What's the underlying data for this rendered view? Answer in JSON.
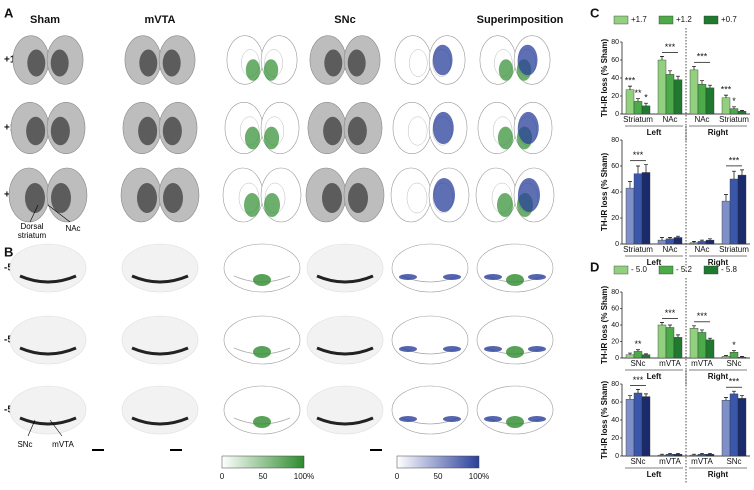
{
  "panels": [
    "A",
    "B",
    "C",
    "D"
  ],
  "columns": [
    "Sham",
    "mVTA",
    "SNc",
    "Superimposition"
  ],
  "rows_a": [
    "+1.7",
    "+1.2",
    "+0.7"
  ],
  "rows_b": [
    "-5.0",
    "-5.2",
    "-5.8"
  ],
  "labels_a": [
    "Dorsal striatum",
    "NAc"
  ],
  "labels_b": [
    "SNc",
    "mVTA"
  ],
  "colorbars": [
    {
      "ticks": [
        0,
        50,
        {
          "value": 100,
          "label": "100%"
        }
      ],
      "color": "#2e8b2e"
    },
    {
      "ticks": [
        0,
        50,
        {
          "value": 100,
          "label": "100%"
        }
      ],
      "color": "#2a3f9a"
    }
  ],
  "chart_data": [
    {
      "type": "bar",
      "ylabel": "TH-IR loss (% Sham)",
      "categories": [
        "Striatum",
        "NAc",
        "NAc",
        "Striatum"
      ],
      "groups": [
        "Left",
        "Right"
      ],
      "ylim": [
        0,
        80
      ],
      "yticks": [
        0,
        20,
        40,
        60,
        80
      ],
      "series": [
        {
          "name": "+1.7",
          "color": "#92d07f",
          "values": [
            27,
            60,
            49,
            18
          ],
          "errors": [
            4,
            4,
            4,
            3
          ]
        },
        {
          "name": "+1.2",
          "color": "#4caa48",
          "values": [
            14,
            44,
            33,
            6
          ],
          "errors": [
            3,
            4,
            4,
            2
          ]
        },
        {
          "name": "+0.7",
          "color": "#1f7a30",
          "values": [
            9,
            38,
            29,
            3
          ],
          "errors": [
            3,
            4,
            3,
            1
          ]
        }
      ],
      "annotations": [
        "***",
        "**",
        "*",
        "***",
        "***",
        "***",
        "*"
      ]
    },
    {
      "type": "bar",
      "ylabel": "TH-IR loss (% Sham)",
      "categories": [
        "Striatum",
        "NAc",
        "NAc",
        "Striatum"
      ],
      "groups": [
        "Left",
        "Right"
      ],
      "ylim": [
        0,
        80
      ],
      "yticks": [
        0,
        20,
        40,
        60,
        80
      ],
      "series": [
        {
          "color": "#7f90c8",
          "values": [
            43,
            3,
            1,
            33
          ],
          "errors": [
            5,
            2,
            1,
            5
          ]
        },
        {
          "color": "#3b57aa",
          "values": [
            54,
            4,
            2,
            50
          ],
          "errors": [
            6,
            1,
            1,
            6
          ]
        },
        {
          "color": "#1a2a6c",
          "values": [
            55,
            5,
            3,
            53
          ],
          "errors": [
            6,
            1,
            1,
            4
          ]
        }
      ],
      "annotations": [
        "***",
        "***"
      ]
    },
    {
      "type": "bar",
      "ylabel": "TH-IR loss (% Sham)",
      "categories": [
        "SNc",
        "mVTA",
        "mVTA",
        "SNc"
      ],
      "groups": [
        "Left",
        "Right"
      ],
      "ylim": [
        0,
        80
      ],
      "yticks": [
        0,
        20,
        40,
        60,
        80
      ],
      "series": [
        {
          "name": "- 5.0",
          "color": "#92d07f",
          "values": [
            4,
            40,
            36,
            2
          ],
          "errors": [
            2,
            3,
            3,
            1
          ]
        },
        {
          "name": "- 5.2",
          "color": "#4caa48",
          "values": [
            8,
            37,
            31,
            7
          ],
          "errors": [
            2,
            3,
            3,
            2
          ]
        },
        {
          "name": "- 5.8",
          "color": "#1f7a30",
          "values": [
            4,
            25,
            22,
            1
          ],
          "errors": [
            1,
            3,
            2,
            1
          ]
        }
      ],
      "annotations": [
        "**",
        "***",
        "***",
        "*"
      ]
    },
    {
      "type": "bar",
      "ylabel": "TH-IR loss (% Sham)",
      "categories": [
        "SNc",
        "mVTA",
        "mVTA",
        "SNc"
      ],
      "groups": [
        "Left",
        "Right"
      ],
      "ylim": [
        0,
        80
      ],
      "yticks": [
        0,
        20,
        40,
        60,
        80
      ],
      "series": [
        {
          "color": "#7f90c8",
          "values": [
            63,
            1,
            1,
            62
          ],
          "errors": [
            4,
            1,
            1,
            3
          ]
        },
        {
          "color": "#3b57aa",
          "values": [
            70,
            2,
            2,
            69
          ],
          "errors": [
            4,
            1,
            1,
            3
          ]
        },
        {
          "color": "#1a2a6c",
          "values": [
            66,
            2,
            2,
            64
          ],
          "errors": [
            3,
            1,
            1,
            3
          ]
        }
      ],
      "annotations": [
        "***",
        "***"
      ]
    }
  ]
}
